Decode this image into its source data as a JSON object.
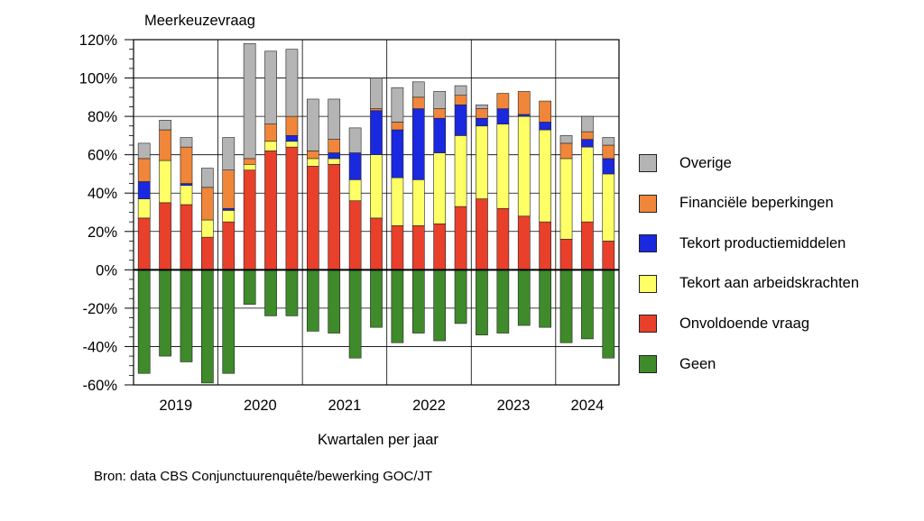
{
  "chart_data": {
    "type": "bar",
    "stacked": true,
    "ylabel": "Meerkeuzevraag",
    "xlabel": "Kwartalen per jaar",
    "source": "Bron: data CBS Conjunctuurenquête/bewerking GOC/JT",
    "ylim": [
      -60,
      120
    ],
    "yticks": [
      "-60%",
      "-40%",
      "-20%",
      "0%",
      "20%",
      "40%",
      "60%",
      "80%",
      "100%",
      "120%"
    ],
    "years": [
      "2019",
      "2020",
      "2021",
      "2022",
      "2023",
      "2024"
    ],
    "quarters_per_year": [
      4,
      4,
      4,
      4,
      4,
      3
    ],
    "legend_position": "right",
    "series": [
      {
        "name": "Onvoldoende vraag",
        "color": "#e8402a",
        "values": [
          27,
          35,
          34,
          17,
          25,
          52,
          62,
          64,
          54,
          55,
          36,
          27,
          23,
          23,
          24,
          33,
          37,
          32,
          28,
          25,
          16,
          25,
          15
        ]
      },
      {
        "name": "Tekort aan arbeidskrachten",
        "color": "#ffff66",
        "values": [
          10,
          22,
          10,
          9,
          6,
          3,
          5,
          3,
          4,
          3,
          11,
          33,
          25,
          24,
          37,
          37,
          38,
          44,
          52,
          48,
          42,
          39,
          35
        ]
      },
      {
        "name": "Tekort productiemiddelen",
        "color": "#1a28e0",
        "values": [
          9,
          0,
          1,
          0,
          1,
          0,
          0,
          3,
          0,
          3,
          14,
          23,
          25,
          37,
          18,
          16,
          4,
          8,
          1,
          4,
          0,
          4,
          8
        ]
      },
      {
        "name": "Financiële beperkingen",
        "color": "#f0863a",
        "values": [
          12,
          16,
          19,
          17,
          20,
          3,
          9,
          10,
          4,
          7,
          0,
          1,
          4,
          6,
          5,
          5,
          5,
          8,
          12,
          11,
          8,
          4,
          7
        ]
      },
      {
        "name": "Overige",
        "color": "#b4b4b4",
        "values": [
          8,
          5,
          5,
          10,
          17,
          60,
          38,
          35,
          27,
          21,
          13,
          16,
          18,
          8,
          9,
          5,
          2,
          0,
          0,
          0,
          4,
          8,
          4
        ]
      },
      {
        "name": "Geen",
        "color": "#3f8a2a",
        "values": [
          -54,
          -45,
          -48,
          -59,
          -54,
          -18,
          -24,
          -24,
          -32,
          -33,
          -46,
          -30,
          -38,
          -33,
          -37,
          -28,
          -34,
          -33,
          -29,
          -30,
          -38,
          -36,
          -46
        ]
      }
    ],
    "legend_order": [
      "Overige",
      "Financiële beperkingen",
      "Tekort productiemiddelen",
      "Tekort aan arbeidskrachten",
      "Onvoldoende vraag",
      "Geen"
    ]
  }
}
